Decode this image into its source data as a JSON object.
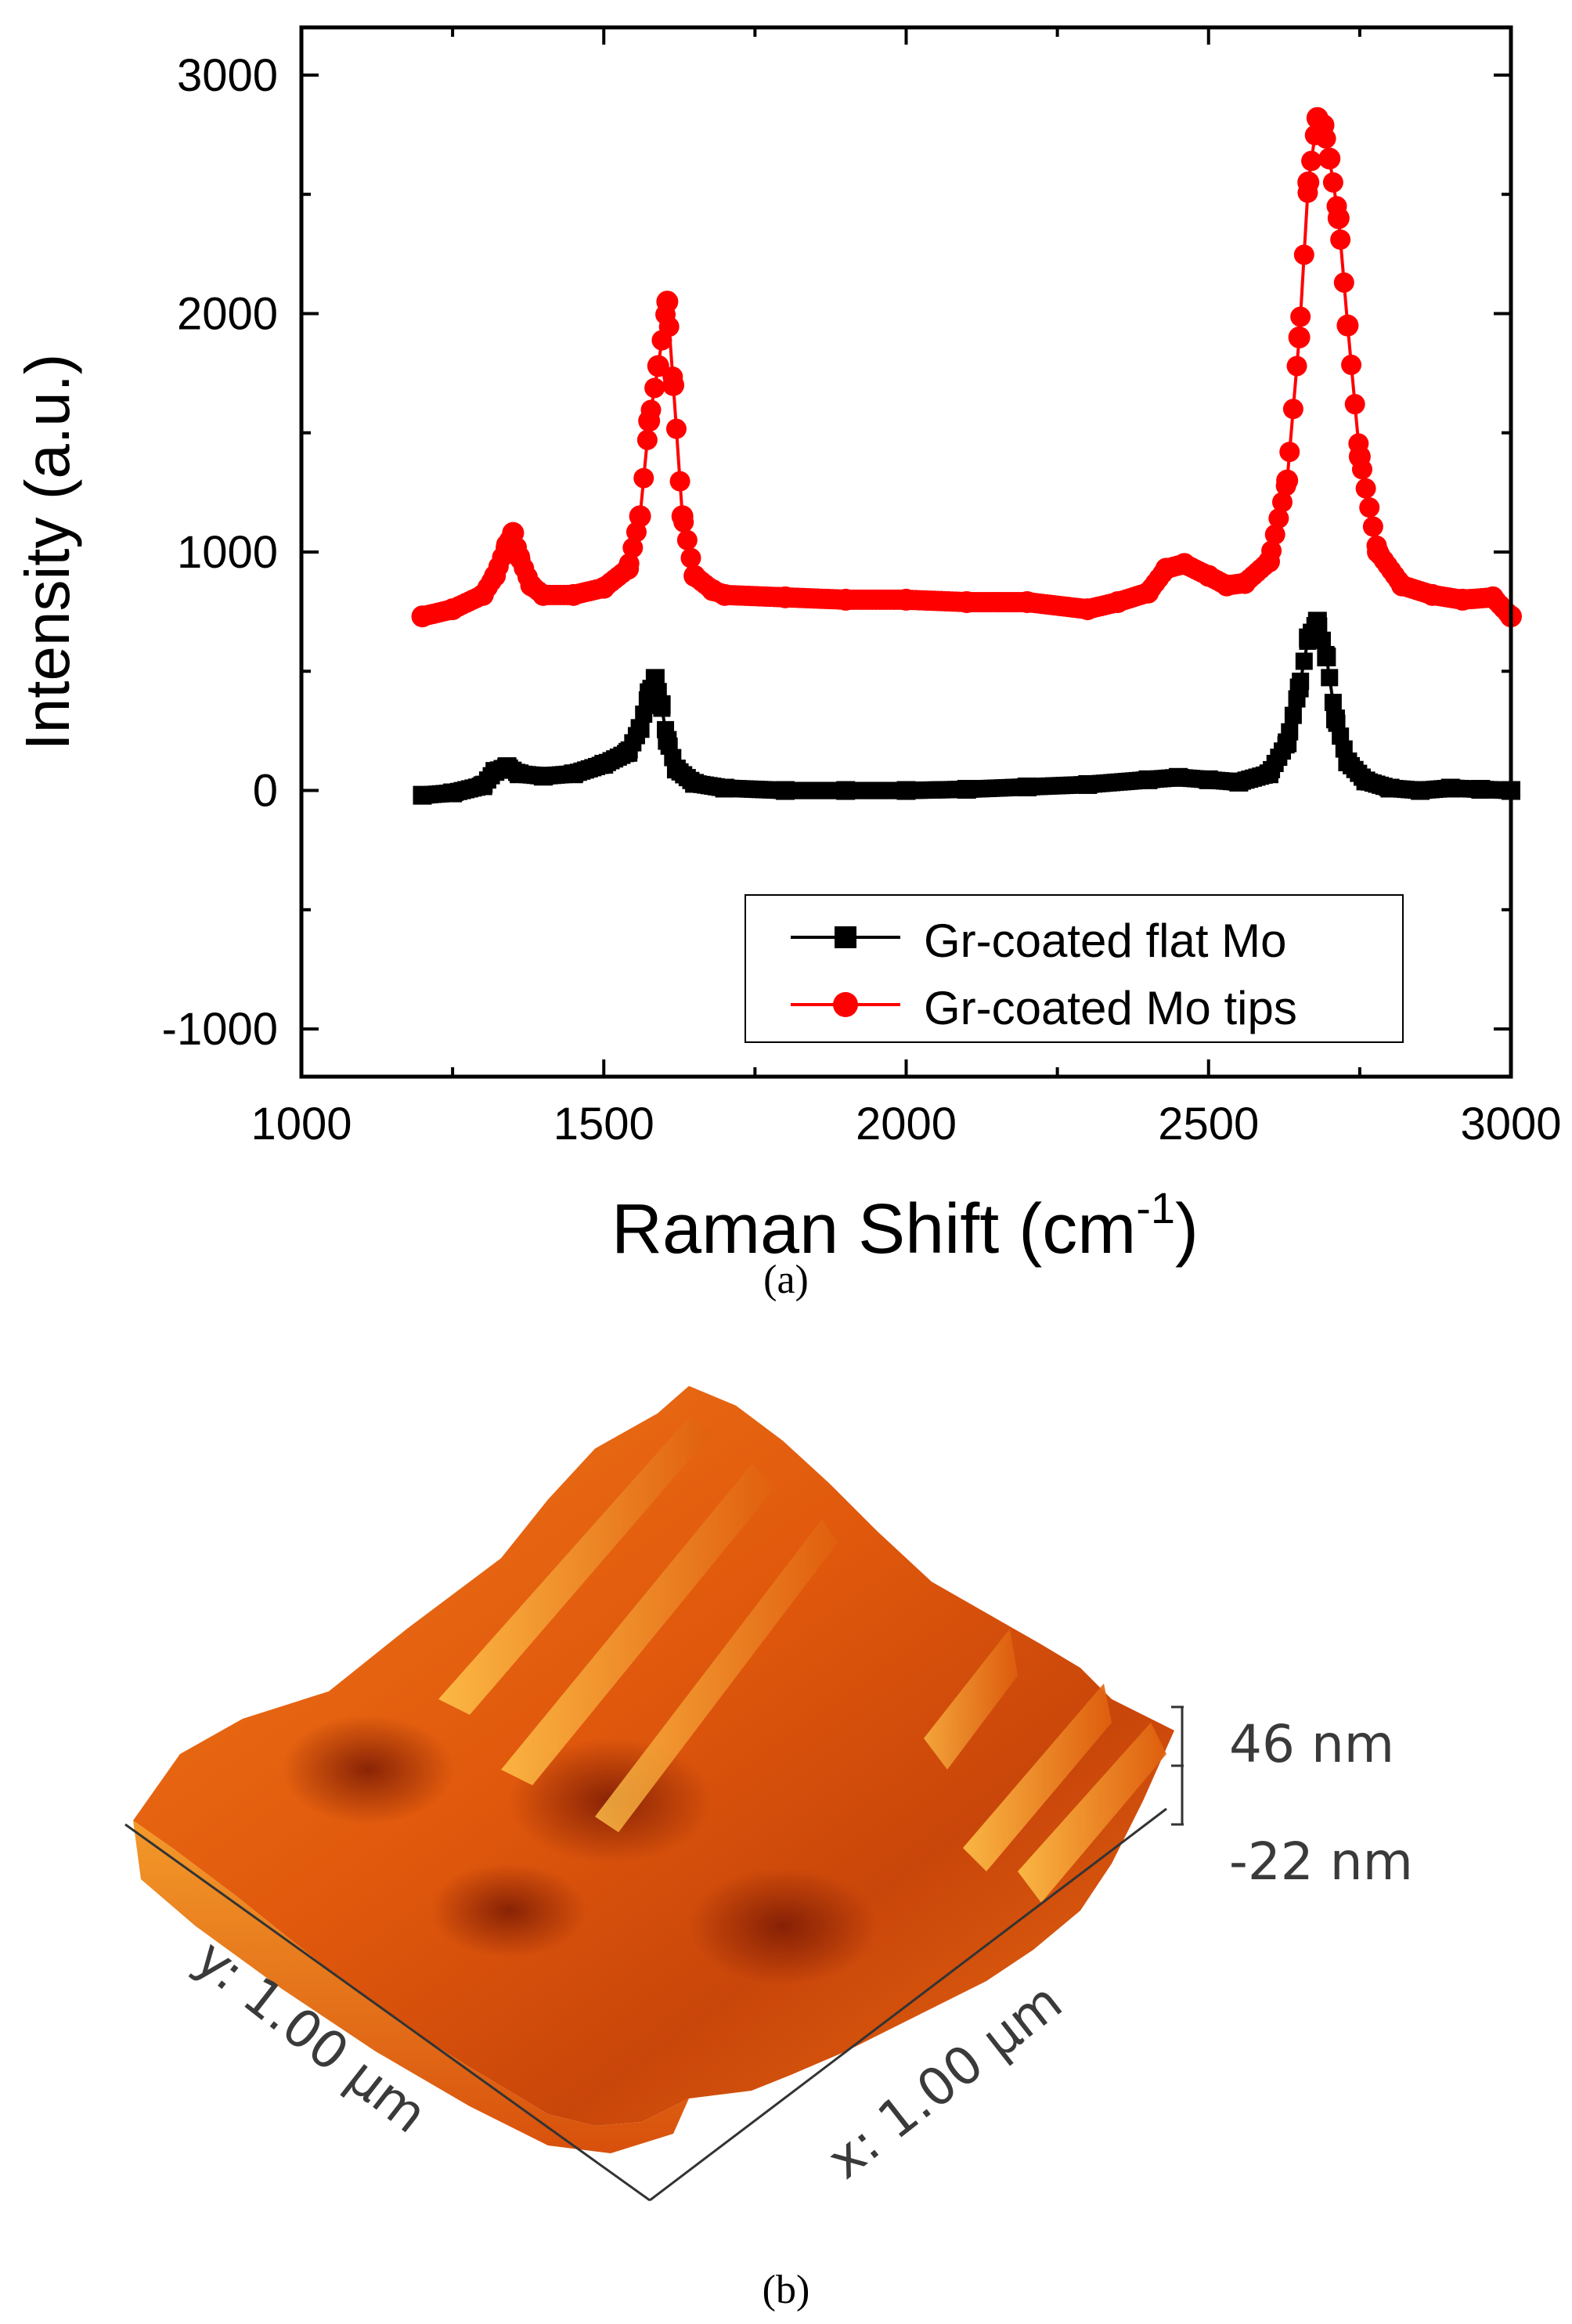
{
  "panel_a": {
    "label": "(a)"
  },
  "panel_b": {
    "label": "(b)",
    "z_max_label": "46 nm",
    "z_min_label": "-22 nm",
    "x_axis_label": "x: 1.00 µm",
    "y_axis_label": "y: 1.00 µm",
    "colors": {
      "low": "#8a1c05",
      "mid": "#e65a0c",
      "high": "#ffb432"
    }
  },
  "chart_data": {
    "type": "line",
    "title": "",
    "xlabel": "Raman Shift (cm",
    "xlabel_sup": "-1",
    "xlabel_close": ")",
    "ylabel": "Intensity (a.u.)",
    "xlim": [
      1000,
      3000
    ],
    "ylim": [
      -1200,
      3200
    ],
    "xticks": [
      1000,
      1500,
      2000,
      2500,
      3000
    ],
    "xtick_labels": [
      "1000",
      "1500",
      "2000",
      "2500",
      "3000"
    ],
    "yticks": [
      -1000,
      0,
      1000,
      2000,
      3000
    ],
    "ytick_labels": [
      "-1000",
      "0",
      "1000",
      "2000",
      "3000"
    ],
    "legend_position": "bottom-right",
    "series": [
      {
        "name": "Gr-coated flat Mo",
        "color": "#000000",
        "marker": "square",
        "x": [
          1200,
          1250,
          1300,
          1320,
          1340,
          1360,
          1400,
          1450,
          1500,
          1540,
          1560,
          1575,
          1585,
          1595,
          1605,
          1620,
          1650,
          1700,
          1800,
          1900,
          2000,
          2100,
          2200,
          2300,
          2400,
          2450,
          2500,
          2550,
          2600,
          2630,
          2650,
          2665,
          2680,
          2695,
          2710,
          2730,
          2760,
          2800,
          2850,
          2900,
          2950,
          3000
        ],
        "y": [
          -20,
          -10,
          20,
          80,
          100,
          70,
          60,
          70,
          110,
          160,
          260,
          410,
          470,
          360,
          210,
          90,
          30,
          10,
          0,
          0,
          0,
          5,
          15,
          25,
          45,
          55,
          45,
          35,
          70,
          200,
          430,
          640,
          710,
          560,
          300,
          120,
          40,
          10,
          0,
          10,
          5,
          0
        ]
      },
      {
        "name": "Gr-coated Mo tips",
        "color": "#ff0000",
        "marker": "circle",
        "x": [
          1200,
          1250,
          1300,
          1320,
          1340,
          1350,
          1360,
          1380,
          1400,
          1450,
          1500,
          1540,
          1560,
          1575,
          1590,
          1605,
          1615,
          1630,
          1650,
          1680,
          1700,
          1800,
          1900,
          2000,
          2100,
          2200,
          2300,
          2350,
          2400,
          2430,
          2460,
          2500,
          2530,
          2560,
          2600,
          2630,
          2650,
          2665,
          2680,
          2690,
          2700,
          2715,
          2730,
          2750,
          2780,
          2820,
          2870,
          2920,
          2970,
          3000
        ],
        "y": [
          730,
          760,
          820,
          900,
          1030,
          1080,
          980,
          860,
          820,
          820,
          850,
          930,
          1150,
          1550,
          1780,
          2050,
          1700,
          1150,
          900,
          840,
          820,
          810,
          800,
          800,
          790,
          790,
          760,
          790,
          830,
          930,
          950,
          900,
          860,
          870,
          960,
          1300,
          1900,
          2550,
          2820,
          2790,
          2650,
          2400,
          1950,
          1400,
          1000,
          860,
          820,
          800,
          810,
          730
        ]
      }
    ]
  }
}
